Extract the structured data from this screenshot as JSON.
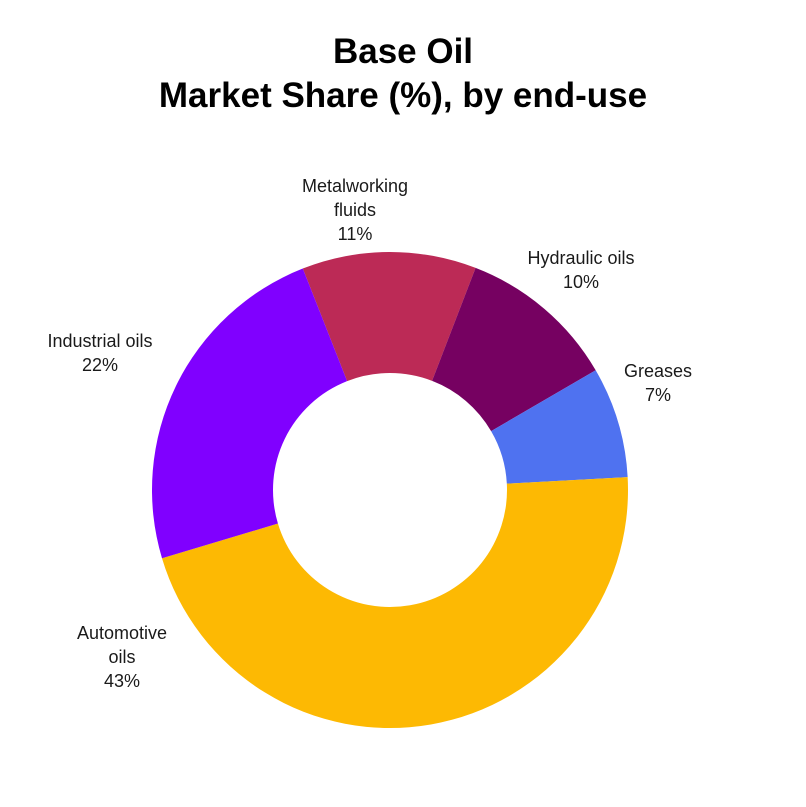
{
  "title_line1": "Base Oil",
  "title_line2": "Market Share (%), by end-use",
  "chart_data": {
    "type": "pie",
    "subtype": "donut",
    "title": "Base Oil Market Share (%), by end-use",
    "categories": [
      "Metalworking fluids",
      "Hydraulic oils",
      "Greases",
      "Automotive oils",
      "Industrial oils"
    ],
    "values": [
      11,
      10,
      7,
      43,
      22
    ],
    "unit": "%",
    "colors": [
      "#bc2a56",
      "#760161",
      "#4f72f0",
      "#fdb903",
      "#8000ff"
    ],
    "legend": "none (direct labels)"
  },
  "labels": {
    "metalworking": {
      "l1": "Metalworking",
      "l2": "fluids",
      "l3": "11%"
    },
    "hydraulic": {
      "l1": "Hydraulic oils",
      "l2": "10%"
    },
    "greases": {
      "l1": "Greases",
      "l2": "7%"
    },
    "automotive": {
      "l1": "Automotive",
      "l2": "oils",
      "l3": "43%"
    },
    "industrial": {
      "l1": "Industrial oils",
      "l2": "22%"
    }
  }
}
